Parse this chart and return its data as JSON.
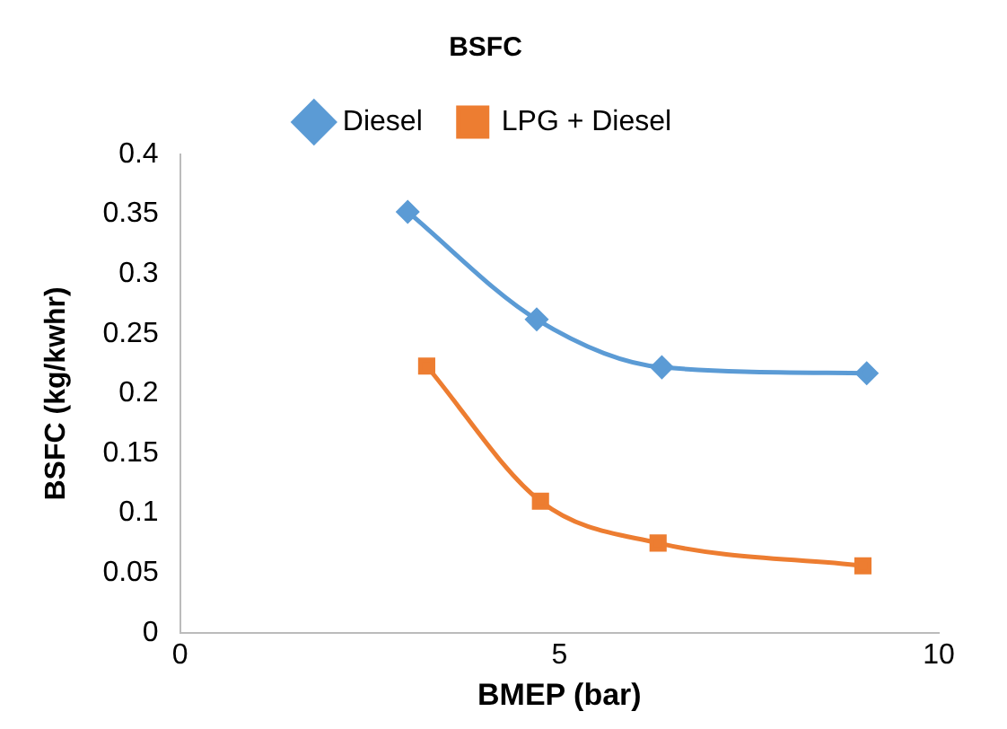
{
  "chart_data": {
    "type": "line",
    "title": "BSFC",
    "xlabel": "BMEP (bar)",
    "ylabel": "BSFC (kg/kwhr)",
    "xlim": [
      0,
      10
    ],
    "xticks": [
      0,
      5,
      10
    ],
    "ylim": [
      0,
      0.4
    ],
    "yticks": [
      0,
      0.05,
      0.1,
      0.15,
      0.2,
      0.25,
      0.3,
      0.35,
      0.4
    ],
    "grid": false,
    "legend": "top",
    "series": [
      {
        "name": "Diesel",
        "color": "#5b9bd5",
        "marker": "diamond",
        "x": [
          3.0,
          4.7,
          6.35,
          9.05
        ],
        "values": [
          0.352,
          0.262,
          0.222,
          0.217
        ]
      },
      {
        "name": "LPG + Diesel",
        "color": "#ed7d31",
        "marker": "square",
        "x": [
          3.25,
          4.75,
          6.3,
          9.0
        ],
        "values": [
          0.223,
          0.11,
          0.075,
          0.056
        ]
      }
    ]
  }
}
